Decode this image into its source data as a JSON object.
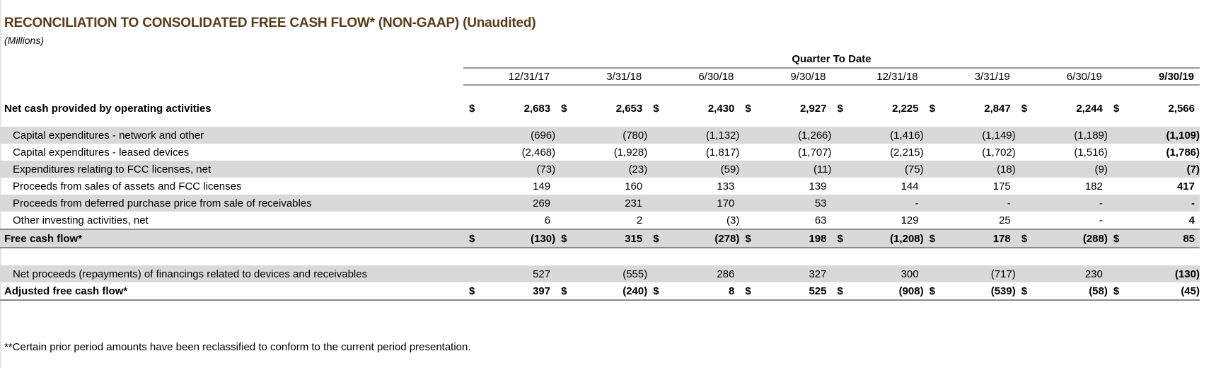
{
  "title": "RECONCILIATION TO CONSOLIDATED FREE CASH FLOW* (NON-GAAP) (Unaudited)",
  "units": "(Millions)",
  "group_header": "Quarter To Date",
  "columns": [
    "12/31/17",
    "3/31/18",
    "6/30/18",
    "9/30/18",
    "12/31/18",
    "3/31/19",
    "6/30/19",
    "9/30/19"
  ],
  "currency": "$",
  "rows": [
    {
      "label": "Net cash provided by operating activities",
      "values": [
        "2,683",
        "2,653",
        "2,430",
        "2,927",
        "2,225",
        "2,847",
        "2,244",
        "2,566"
      ]
    },
    {
      "label": "Capital expenditures - network and other",
      "values": [
        "(696)",
        "(780)",
        "(1,132)",
        "(1,266)",
        "(1,416)",
        "(1,149)",
        "(1,189)",
        "(1,109)"
      ]
    },
    {
      "label": "Capital expenditures - leased devices",
      "values": [
        "(2,468)",
        "(1,928)",
        "(1,817)",
        "(1,707)",
        "(2,215)",
        "(1,702)",
        "(1,516)",
        "(1,786)"
      ]
    },
    {
      "label": "Expenditures relating to FCC licenses, net",
      "values": [
        "(73)",
        "(23)",
        "(59)",
        "(11)",
        "(75)",
        "(18)",
        "(9)",
        "(7)"
      ]
    },
    {
      "label": "Proceeds from sales of assets and FCC licenses",
      "values": [
        "149",
        "160",
        "133",
        "139",
        "144",
        "175",
        "182",
        "417"
      ]
    },
    {
      "label": "Proceeds from deferred purchase price from sale of receivables",
      "values": [
        "269",
        "231",
        "170",
        "53",
        "-",
        "-",
        "-",
        "-"
      ]
    },
    {
      "label": "Other investing activities, net",
      "values": [
        "6",
        "2",
        "(3)",
        "63",
        "129",
        "25",
        "-",
        "4"
      ]
    },
    {
      "label": "Free cash flow*",
      "values": [
        "(130)",
        "315",
        "(278)",
        "198",
        "(1,208)",
        "178",
        "(288)",
        "85"
      ]
    },
    {
      "label": "Net proceeds (repayments) of financings related to devices and receivables",
      "values": [
        "527",
        "(555)",
        "286",
        "327",
        "300",
        "(717)",
        "230",
        "(130)"
      ]
    },
    {
      "label": "Adjusted free cash flow*",
      "values": [
        "397",
        "(240)",
        "8",
        "525",
        "(908)",
        "(539)",
        "(58)",
        "(45)"
      ]
    }
  ],
  "footnote": "**Certain prior period amounts have been reclassified to conform to the current period presentation."
}
